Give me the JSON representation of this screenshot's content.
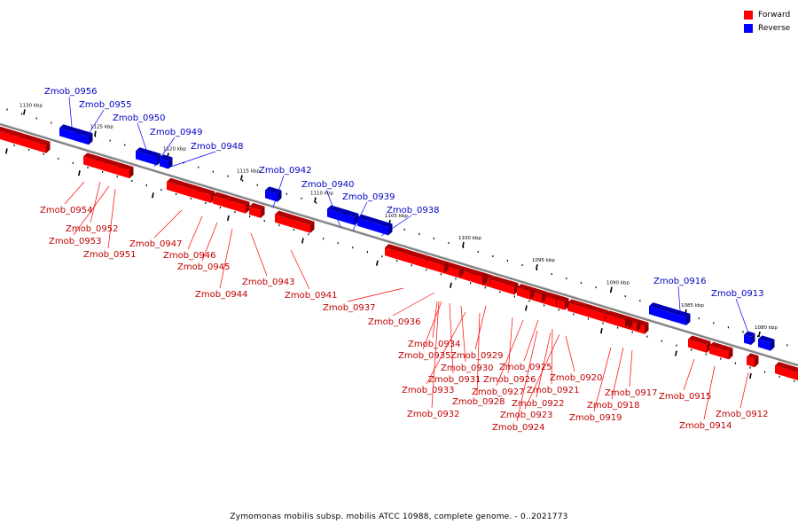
{
  "legend": {
    "items": [
      {
        "label": "Forward",
        "color": "#ff0000"
      },
      {
        "label": "Reverse",
        "color": "#0000ff"
      }
    ]
  },
  "caption": "Zymomonas mobilis subsp. mobilis ATCC 10988, complete genome. - 0..2021773",
  "colors": {
    "forward": "#ff0000",
    "reverse": "#0000ff",
    "backbone": "#808080"
  },
  "scale_labels": [
    "1130 kbp",
    "1125 kbp",
    "1120 kbp",
    "1115 kbp",
    "1110 kbp",
    "1105 kbp",
    "1100 kbp",
    "1095 kbp",
    "1090 kbp",
    "1085 kbp",
    "1080 kbp"
  ],
  "genes": [
    {
      "label": "Zmob_0956",
      "strand": "reverse"
    },
    {
      "label": "Zmob_0955",
      "strand": "reverse"
    },
    {
      "label": "Zmob_0950",
      "strand": "reverse"
    },
    {
      "label": "Zmob_0949",
      "strand": "reverse"
    },
    {
      "label": "Zmob_0948",
      "strand": "reverse"
    },
    {
      "label": "Zmob_0942",
      "strand": "reverse"
    },
    {
      "label": "Zmob_0940",
      "strand": "reverse"
    },
    {
      "label": "Zmob_0939",
      "strand": "reverse"
    },
    {
      "label": "Zmob_0938",
      "strand": "reverse"
    },
    {
      "label": "Zmob_0916",
      "strand": "reverse"
    },
    {
      "label": "Zmob_0913",
      "strand": "reverse"
    },
    {
      "label": "Zmob_0954",
      "strand": "forward"
    },
    {
      "label": "Zmob_0952",
      "strand": "forward"
    },
    {
      "label": "Zmob_0953",
      "strand": "forward"
    },
    {
      "label": "Zmob_0951",
      "strand": "forward"
    },
    {
      "label": "Zmob_0947",
      "strand": "forward"
    },
    {
      "label": "Zmob_0946",
      "strand": "forward"
    },
    {
      "label": "Zmob_0945",
      "strand": "forward"
    },
    {
      "label": "Zmob_0944",
      "strand": "forward"
    },
    {
      "label": "Zmob_0943",
      "strand": "forward"
    },
    {
      "label": "Zmob_0941",
      "strand": "forward"
    },
    {
      "label": "Zmob_0937",
      "strand": "forward"
    },
    {
      "label": "Zmob_0936",
      "strand": "forward"
    },
    {
      "label": "Zmob_0934",
      "strand": "forward"
    },
    {
      "label": "Zmob_0935",
      "strand": "forward"
    },
    {
      "label": "Zmob_0929",
      "strand": "forward"
    },
    {
      "label": "Zmob_0930",
      "strand": "forward"
    },
    {
      "label": "Zmob_0931",
      "strand": "forward"
    },
    {
      "label": "Zmob_0925",
      "strand": "forward"
    },
    {
      "label": "Zmob_0926",
      "strand": "forward"
    },
    {
      "label": "Zmob_0920",
      "strand": "forward"
    },
    {
      "label": "Zmob_0933",
      "strand": "forward"
    },
    {
      "label": "Zmob_0927",
      "strand": "forward"
    },
    {
      "label": "Zmob_0921",
      "strand": "forward"
    },
    {
      "label": "Zmob_0917",
      "strand": "forward"
    },
    {
      "label": "Zmob_0915",
      "strand": "forward"
    },
    {
      "label": "Zmob_0928",
      "strand": "forward"
    },
    {
      "label": "Zmob_0922",
      "strand": "forward"
    },
    {
      "label": "Zmob_0918",
      "strand": "forward"
    },
    {
      "label": "Zmob_0932",
      "strand": "forward"
    },
    {
      "label": "Zmob_0923",
      "strand": "forward"
    },
    {
      "label": "Zmob_0919",
      "strand": "forward"
    },
    {
      "label": "Zmob_0912",
      "strand": "forward"
    },
    {
      "label": "Zmob_0924",
      "strand": "forward"
    },
    {
      "label": "Zmob_0914",
      "strand": "forward"
    }
  ]
}
